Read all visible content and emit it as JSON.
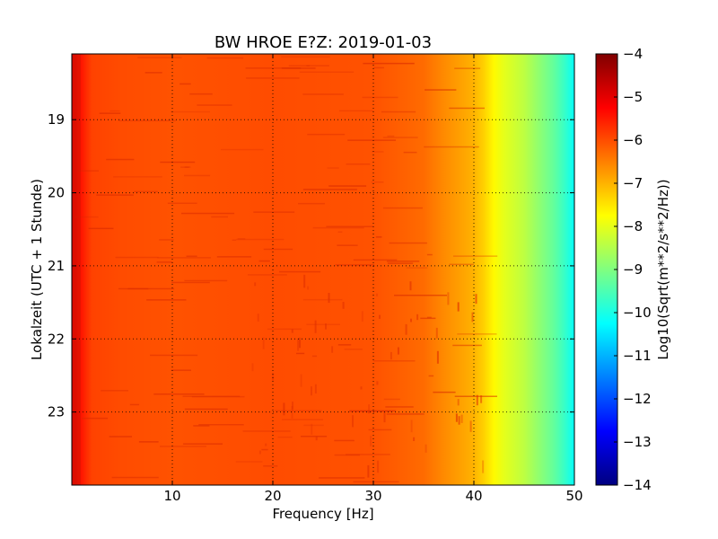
{
  "chart_data": {
    "type": "heatmap",
    "title": "BW HROE E?Z: 2019-01-03",
    "xlabel": "Frequency [Hz]",
    "ylabel": "Lokalzeit (UTC + 1 Stunde)",
    "colorbar_label": "Log10(Sqrt(m**2/s**2/Hz))",
    "colormap": "jet",
    "grid": true,
    "xlim": [
      0,
      50
    ],
    "ylim": [
      24,
      18.1
    ],
    "clim": [
      -14,
      -4
    ],
    "xticks": [
      10,
      20,
      30,
      40,
      50
    ],
    "yticks": [
      19,
      20,
      21,
      22,
      23
    ],
    "colorbar_ticks": [
      -4,
      -5,
      -6,
      -7,
      -8,
      -9,
      -10,
      -11,
      -12,
      -13,
      -14
    ],
    "spectrum_profile": {
      "frequency_hz": [
        0,
        0.8,
        2,
        5,
        10,
        20,
        30,
        35,
        37,
        38.5,
        40,
        41,
        42,
        43,
        44,
        45,
        46,
        47,
        48,
        49,
        50
      ],
      "level": [
        -5.0,
        -5.4,
        -5.9,
        -6.0,
        -6.05,
        -6.0,
        -6.05,
        -6.3,
        -6.6,
        -6.8,
        -7.0,
        -7.3,
        -7.7,
        -8.0,
        -8.2,
        -8.4,
        -8.7,
        -9.0,
        -9.3,
        -9.7,
        -10.2
      ]
    }
  }
}
